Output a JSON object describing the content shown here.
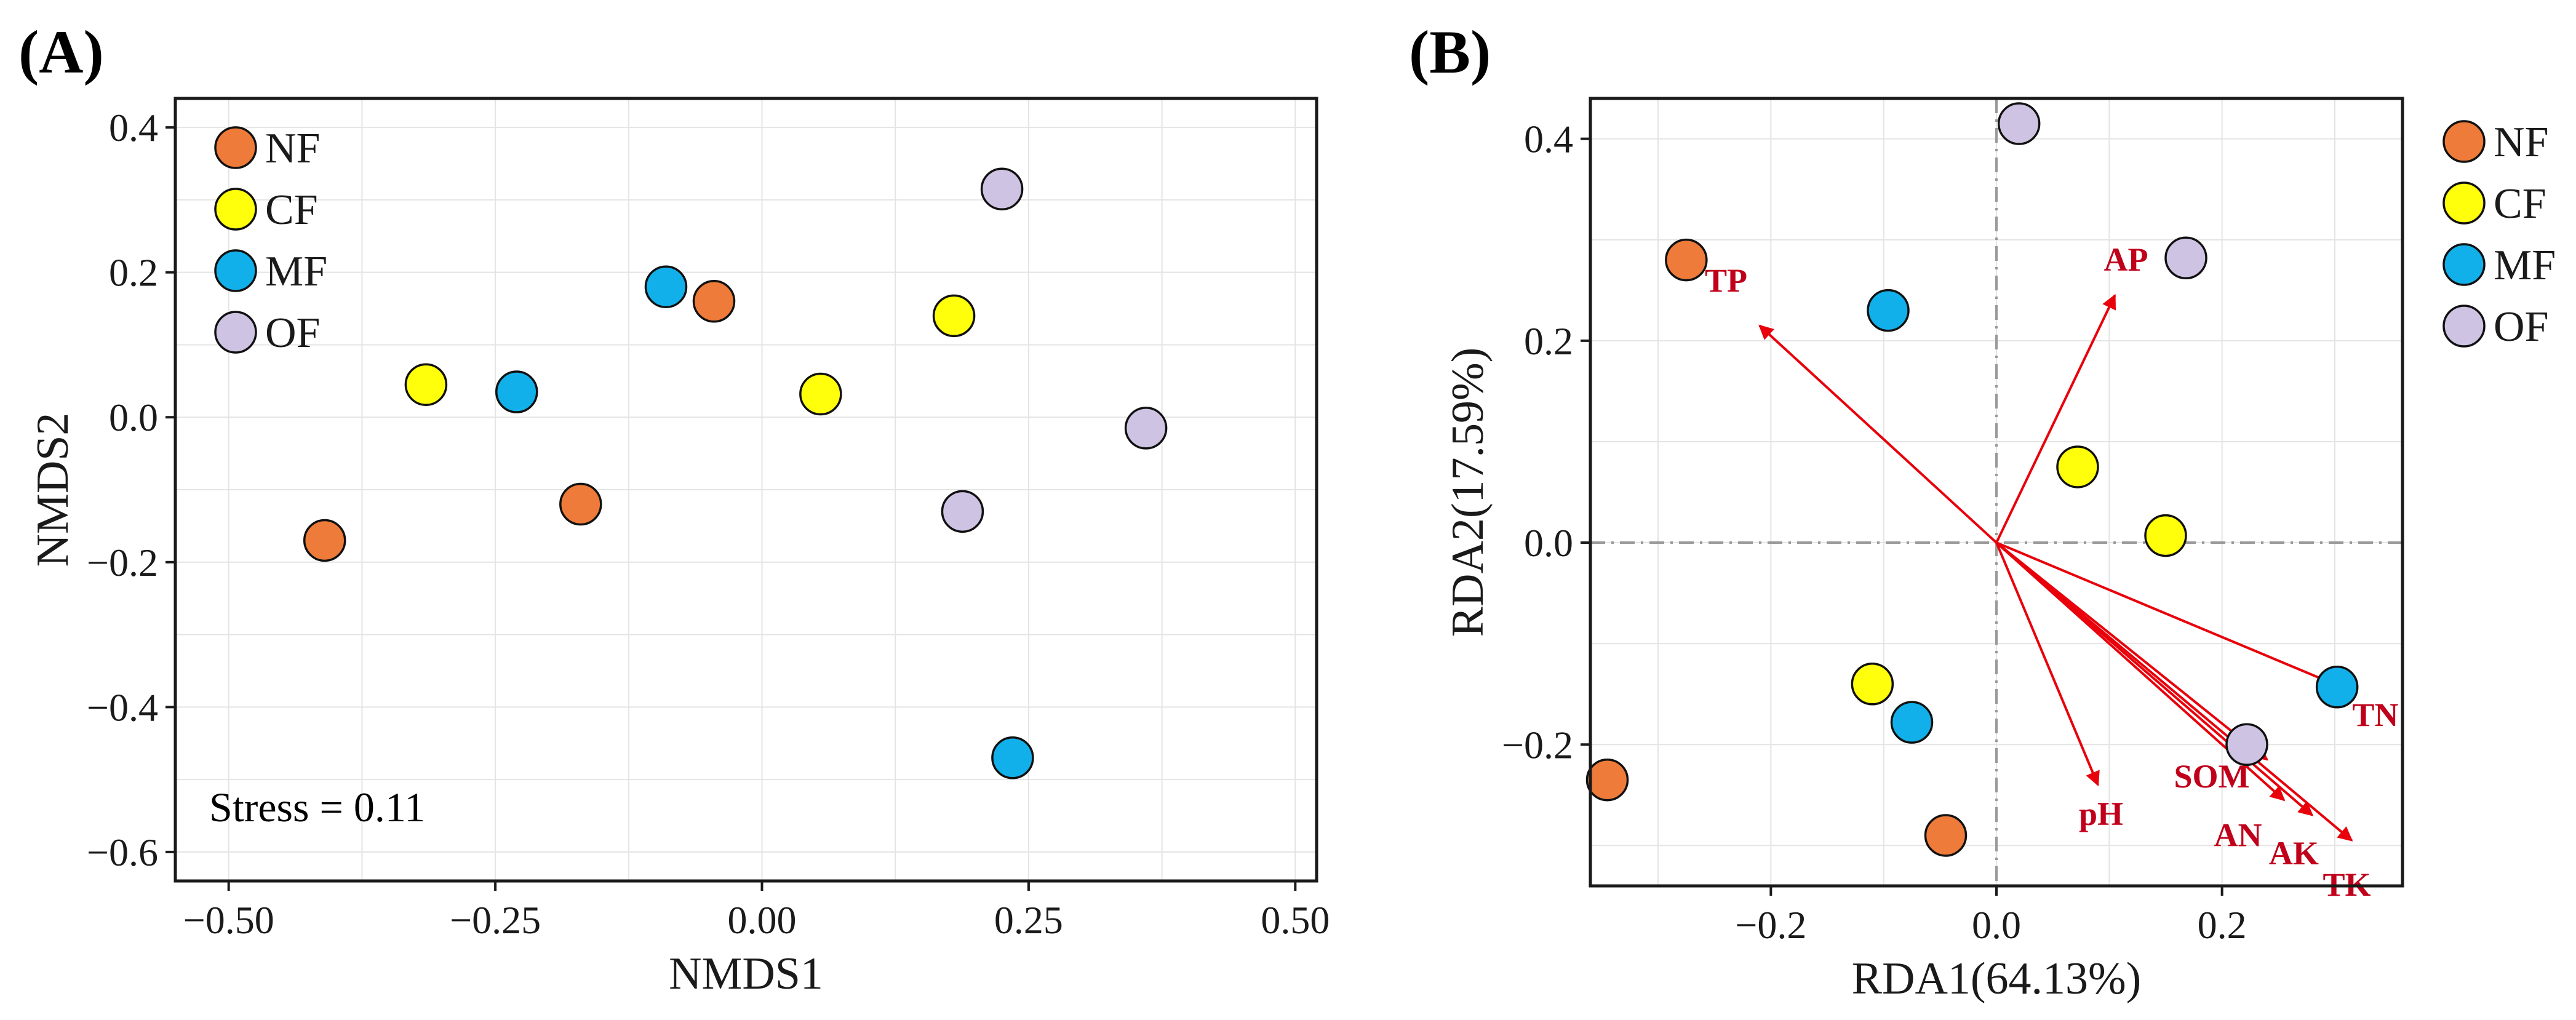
{
  "figure_labels": {
    "a": "(A)",
    "b": "(B)"
  },
  "chart_data": [
    {
      "panel": "(A)",
      "type": "scatter",
      "title": "",
      "xlabel": "NMDS1",
      "ylabel": "NMDS2",
      "xlim": [
        -0.55,
        0.52
      ],
      "ylim": [
        -0.64,
        0.44
      ],
      "xticks": [
        -0.5,
        -0.25,
        0.0,
        0.25,
        0.5
      ],
      "xtick_labels": [
        "−0.50",
        "−0.25",
        "0.00",
        "0.25",
        "0.50"
      ],
      "yticks": [
        -0.6,
        -0.4,
        -0.2,
        0.0,
        0.2,
        0.4
      ],
      "ytick_labels": [
        "−0.6",
        "−0.4",
        "−0.2",
        "0.0",
        "0.2",
        "0.4"
      ],
      "grid": true,
      "legend_position": "top-left",
      "annotation": "Stress = 0.11",
      "series": [
        {
          "name": "NF",
          "color": "#ee7b39",
          "points": [
            [
              -0.41,
              -0.17
            ],
            [
              -0.17,
              -0.12
            ],
            [
              -0.045,
              0.16
            ]
          ]
        },
        {
          "name": "CF",
          "color": "#ffff0b",
          "points": [
            [
              -0.315,
              0.045
            ],
            [
              0.055,
              0.032
            ],
            [
              0.18,
              0.14
            ]
          ]
        },
        {
          "name": "MF",
          "color": "#12b0ea",
          "points": [
            [
              -0.23,
              0.035
            ],
            [
              -0.09,
              0.18
            ],
            [
              0.235,
              -0.47
            ]
          ]
        },
        {
          "name": "OF",
          "color": "#cfc3e3",
          "points": [
            [
              0.225,
              0.315
            ],
            [
              0.36,
              -0.015
            ],
            [
              0.188,
              -0.13
            ]
          ]
        }
      ]
    },
    {
      "panel": "(B)",
      "type": "scatter",
      "title": "",
      "xlabel": "RDA1(64.13%)",
      "ylabel": "RDA2(17.59%)",
      "xlim": [
        -0.36,
        0.36
      ],
      "ylim": [
        -0.34,
        0.44
      ],
      "xticks": [
        -0.2,
        0.0,
        0.2
      ],
      "xtick_labels": [
        "−0.2",
        "0.0",
        "0.2"
      ],
      "yticks": [
        -0.2,
        0.0,
        0.2,
        0.4
      ],
      "ytick_labels": [
        "−0.2",
        "0.0",
        "0.2",
        "0.4"
      ],
      "grid": true,
      "legend_position": "right",
      "zero_lines": true,
      "series": [
        {
          "name": "NF",
          "color": "#ee7b39",
          "points": [
            [
              -0.275,
              0.28
            ],
            [
              -0.345,
              -0.235
            ],
            [
              -0.045,
              -0.29
            ]
          ]
        },
        {
          "name": "CF",
          "color": "#ffff0b",
          "points": [
            [
              0.072,
              0.075
            ],
            [
              0.15,
              0.007
            ],
            [
              -0.11,
              -0.14
            ]
          ]
        },
        {
          "name": "MF",
          "color": "#12b0ea",
          "points": [
            [
              -0.096,
              0.23
            ],
            [
              -0.075,
              -0.178
            ],
            [
              0.302,
              -0.143
            ]
          ]
        },
        {
          "name": "OF",
          "color": "#cfc3e3",
          "points": [
            [
              0.02,
              0.415
            ],
            [
              0.168,
              0.282
            ],
            [
              0.222,
              -0.2
            ]
          ]
        }
      ],
      "environmental_vectors": [
        {
          "name": "TP",
          "end": [
            -0.21,
            0.215
          ]
        },
        {
          "name": "AP",
          "end": [
            0.105,
            0.245
          ]
        },
        {
          "name": "TN",
          "end": [
            0.31,
            -0.145
          ]
        },
        {
          "name": "SOM",
          "end": [
            0.24,
            -0.215
          ]
        },
        {
          "name": "pH",
          "end": [
            0.09,
            -0.24
          ]
        },
        {
          "name": "AN",
          "end": [
            0.255,
            -0.255
          ]
        },
        {
          "name": "AK",
          "end": [
            0.28,
            -0.27
          ]
        },
        {
          "name": "TK",
          "end": [
            0.315,
            -0.295
          ]
        }
      ],
      "vector_color": "#e8000b",
      "vector_label_color": "#c0001a"
    }
  ]
}
